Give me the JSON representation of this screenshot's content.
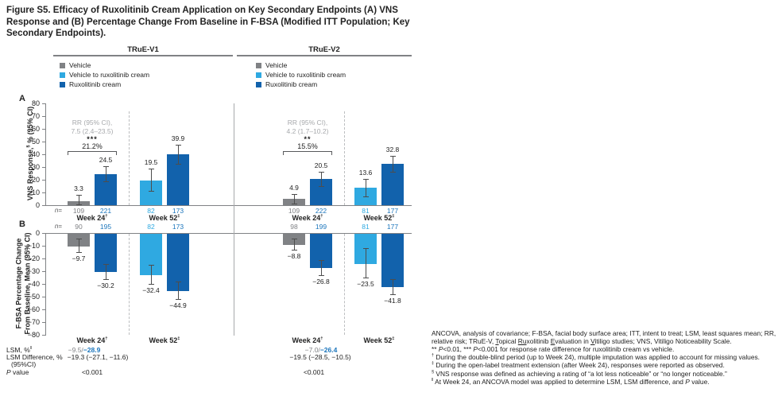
{
  "title_lines": [
    "Figure S5. Efficacy of Ruxolitinib Cream Application on Key Secondary Endpoints (A) VNS",
    "Response and (B) Percentage Change From Baseline in F-BSA (Modified ITT Population; Key",
    "Secondary Endpoints)."
  ],
  "studies": [
    {
      "name": "TRuE-V1"
    },
    {
      "name": "TRuE-V2"
    }
  ],
  "legend_items": [
    {
      "key": "vehicle",
      "label": "Vehicle"
    },
    {
      "key": "vehicle_to_rux",
      "label": "Vehicle to ruxolitinib cream"
    },
    {
      "key": "rux",
      "label": "Ruxolitinib cream"
    }
  ],
  "n_prefix_html": "<i>n</i>=",
  "colors": {
    "vehicle": "#808285",
    "vehicle_to_rux": "#2FA9E1",
    "rux": "#1262AC",
    "n_blue": "#1B75BC",
    "annotation_gray": "#A7A9AC",
    "axis": "#808285",
    "whisker": "#4D4D4D",
    "dashed": "#BCBEC0",
    "separator": "#A7A9AC"
  },
  "chart_data": [
    {
      "id": "panel_a",
      "type": "bar",
      "panel_label": "A",
      "ylabel_html": "VNS Response,<sup>§</sup> % (95% CI)",
      "ylabel_text": "VNS Response, % (95% CI)",
      "ylim": [
        0,
        80
      ],
      "yticks": [
        0,
        10,
        20,
        30,
        40,
        50,
        60,
        70,
        80
      ],
      "groups": [
        {
          "study": "TRuE-V1",
          "week": "Week 24",
          "week_html": "Week 24<sup>†</sup>",
          "annotation": {
            "rr_line1": "RR (95% CI),",
            "rr_line2": "7.5 (2.4–23.5)",
            "stars": "***",
            "diff": "21.2%"
          },
          "bars": [
            {
              "series": "vehicle",
              "n": "109",
              "value": 3.3,
              "ci": [
                0.5,
                8.0
              ]
            },
            {
              "series": "rux",
              "n": "221",
              "value": 24.5,
              "ci": [
                18.5,
                30.5
              ]
            }
          ]
        },
        {
          "study": "TRuE-V1",
          "week": "Week 52",
          "week_html": "Week 52<sup>‡</sup>",
          "bars": [
            {
              "series": "vehicle_to_rux",
              "n": "82",
              "value": 19.5,
              "ci": [
                11.5,
                29.0
              ]
            },
            {
              "series": "rux",
              "n": "173",
              "value": 39.9,
              "ci": [
                32.5,
                47.5
              ]
            }
          ]
        },
        {
          "study": "TRuE-V2",
          "week": "Week 24",
          "week_html": "Week 24<sup>†</sup>",
          "annotation": {
            "rr_line1": "RR (95% CI),",
            "rr_line2": "4.2 (1.7–10.2)",
            "stars": "**",
            "diff": "15.5%"
          },
          "bars": [
            {
              "series": "vehicle",
              "n": "109",
              "value": 4.9,
              "ci": [
                1.0,
                9.0
              ]
            },
            {
              "series": "rux",
              "n": "222",
              "value": 20.5,
              "ci": [
                15.0,
                26.0
              ]
            }
          ]
        },
        {
          "study": "TRuE-V2",
          "week": "Week 52",
          "week_html": "Week 52<sup>‡</sup>",
          "bars": [
            {
              "series": "vehicle_to_rux",
              "n": "81",
              "value": 13.6,
              "ci": [
                7.0,
                20.5
              ]
            },
            {
              "series": "rux",
              "n": "177",
              "value": 32.8,
              "ci": [
                26.5,
                39.0
              ]
            }
          ]
        }
      ]
    },
    {
      "id": "panel_b",
      "type": "bar",
      "panel_label": "B",
      "ylabel_lines": [
        "F-BSA Percentage Change",
        "From Baseline, Mean (95% CI)"
      ],
      "ylim": [
        0,
        -80
      ],
      "yticks": [
        0,
        -10,
        -20,
        -30,
        -40,
        -50,
        -60,
        -70,
        -80
      ],
      "groups": [
        {
          "study": "TRuE-V1",
          "week": "Week 24",
          "week_html": "Week 24<sup>†</sup>",
          "bars": [
            {
              "series": "vehicle",
              "n": "90",
              "value": -9.7,
              "ci": [
                -4.5,
                -15.0
              ]
            },
            {
              "series": "rux",
              "n": "195",
              "value": -30.2,
              "ci": [
                -24.5,
                -36.0
              ]
            }
          ]
        },
        {
          "study": "TRuE-V1",
          "week": "Week 52",
          "week_html": "Week 52<sup>‡</sup>",
          "bars": [
            {
              "series": "vehicle_to_rux",
              "n": "82",
              "value": -32.4,
              "ci": [
                -25.0,
                -40.0
              ]
            },
            {
              "series": "rux",
              "n": "173",
              "value": -44.9,
              "ci": [
                -38.0,
                -52.0
              ]
            }
          ]
        },
        {
          "study": "TRuE-V2",
          "week": "Week 24",
          "week_html": "Week 24<sup>†</sup>",
          "bars": [
            {
              "series": "vehicle",
              "n": "98",
              "value": -8.8,
              "ci": [
                -4.5,
                -13.0
              ]
            },
            {
              "series": "rux",
              "n": "199",
              "value": -26.8,
              "ci": [
                -21.0,
                -33.0
              ]
            }
          ]
        },
        {
          "study": "TRuE-V2",
          "week": "Week 52",
          "week_html": "Week 52<sup>‡</sup>",
          "bars": [
            {
              "series": "vehicle_to_rux",
              "n": "81",
              "value": -23.5,
              "ci": [
                -12.0,
                -35.0
              ]
            },
            {
              "series": "rux",
              "n": "177",
              "value": -41.8,
              "ci": [
                -36.0,
                -48.0
              ]
            }
          ]
        }
      ]
    }
  ],
  "lsm_table": {
    "lsm_label_html": "LSM, %<sup>‖</sup>",
    "lsm_v1_html": "<span class='lsm-gray'>−9.5/</span><span class='lsm-blue'>−28.9</span>",
    "lsm_v2_html": "<span class='lsm-gray'>−7.0/</span><span class='lsm-blue'>−26.4</span>",
    "diff_label": "LSM Difference, %",
    "diff_v1": "−19.3 (−27.1, −11.6)",
    "diff_v2": "−19.5 (−28.5, −10.5)",
    "ci_label": "(95%CI)",
    "p_label_html": "<i>P</i> value",
    "p_v1": "<0.001",
    "p_v2": "<0.001"
  },
  "footnotes_html": [
    "ANCOVA, analysis of covariance; F-BSA, facial body surface area; ITT, intent to treat; LSM, least squares mean; RR, relative risk; TRuE-V, <u>T</u>opical <u>Ru</u>xolitinib <u>E</u>valuation in <u>V</u>itiligo studies; VNS, Vitiligo Noticeability Scale.",
    "** <i>P</i>&lt;0.01, *** <i>P</i>&lt;0.001 for response rate difference for ruxolitinib cream vs vehicle.",
    "<sup>†</sup> During the double-blind period (up to Week 24), multiple imputation was applied to account for missing values.",
    "<sup>‡</sup> During the open-label treatment extension (after Week 24), responses were reported as observed.",
    "<sup>§</sup> VNS response was defined as achieving a rating of “a lot less noticeable” or “no longer noticeable.”",
    "<sup>‖</sup> At Week 24, an ANCOVA model was applied to determine LSM, LSM difference, and <i>P</i> value."
  ]
}
